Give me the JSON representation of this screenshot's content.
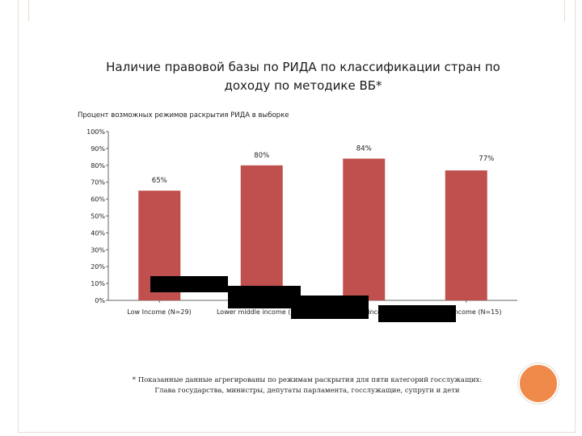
{
  "chart_data": {
    "type": "bar",
    "title": "Наличие правовой базы по РИДА по классификации стран по доходу по методике ВБ*",
    "ylabel": "Процент возможных режимов раскрытия РИДА в выборке",
    "xlabel": "",
    "categories": [
      "Low Income (N=29)",
      "Lower middle income (N=",
      "income",
      "income (N=15)"
    ],
    "values": [
      65,
      80,
      84,
      77
    ],
    "value_labels": [
      "65%",
      "80%",
      "84%",
      "77%"
    ],
    "ylim": [
      0,
      100
    ],
    "yticks": [
      "0%",
      "10%",
      "20%",
      "30%",
      "40%",
      "50%",
      "60%",
      "70%",
      "80%",
      "90%",
      "100%"
    ],
    "grid": false,
    "bar_color": "#c0504d"
  },
  "footnote": {
    "line1": "* Показанные данные агрегированы по режимам раскрытия для пяти категорий госслужащих:",
    "line2": "Глава государства, министры, депутаты парламента, госслужащие, супруги и дети"
  },
  "decor": {
    "accent_color": "#f08a4b",
    "frame_color": "#e6dcd4"
  }
}
